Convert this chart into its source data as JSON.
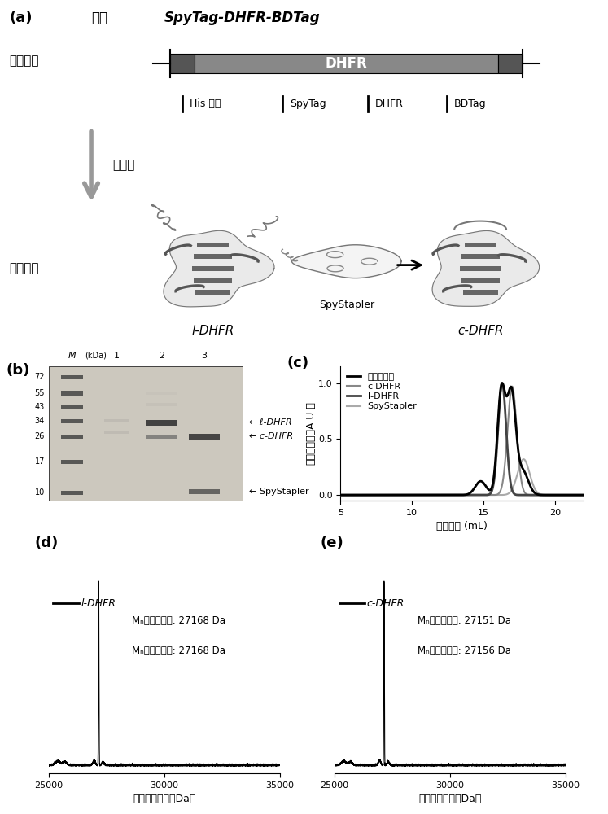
{
  "panel_a_label": "(a)",
  "panel_b_label": "(b)",
  "panel_c_label": "(c)",
  "panel_d_label": "(d)",
  "panel_e_label": "(e)",
  "title_gene": "基因",
  "title_italic": "SpyTag-DHFR-BDTag",
  "dhfr_box_label": "DHFR",
  "intracell_label": "胞内表达",
  "extracell_label": "胞外反应",
  "protein_label": "蛋白质",
  "legend_labels": [
    "His 标签",
    "SpyTag",
    "DHFR",
    "BDTag"
  ],
  "l_dhfr_label": "l-DHFR",
  "c_dhfr_label": "c-DHFR",
  "spystapler_label": "SpyStapler",
  "mw_markers": [
    72,
    55,
    43,
    34,
    26,
    17,
    10
  ],
  "gel_annotations": [
    "l-DHFR",
    "c-DHFR",
    "SpyStapler"
  ],
  "c_xlabel": "流出体积 (mL)",
  "c_ylabel": "归一化强度（A.U.）",
  "c_legend": [
    "反应混合液",
    "c-DHFR",
    "l-DHFR",
    "SpyStapler"
  ],
  "c_colors": [
    "#000000",
    "#888888",
    "#444444",
    "#aaaaaa"
  ],
  "c_lw": [
    2.0,
    1.5,
    2.0,
    1.5
  ],
  "c_xlim": [
    5,
    22
  ],
  "c_ylim": [
    -0.05,
    1.15
  ],
  "c_xticks": [
    5,
    10,
    15,
    20
  ],
  "c_yticks": [
    0.0,
    0.5,
    1.0
  ],
  "panel_d": {
    "label": "l-DHFR",
    "peak": 27168,
    "xlim": [
      25000,
      35000
    ],
    "xlabel": "相对分子质量（Da）",
    "calc_val": "27168",
    "exp_val": "27168",
    "calc_label": "Mₙ（计算値）: 27168 Da",
    "exp_label": "Mₙ（实验値）: 27168 Da"
  },
  "panel_e": {
    "label": "c-DHFR",
    "peak": 27151,
    "xlim": [
      25000,
      35000
    ],
    "xlabel": "相对分子质量（Da）",
    "calc_val": "27151",
    "exp_val": "27156",
    "calc_label": "Mₙ（计算値）: 27151 Da",
    "exp_label": "Mₙ（实验値）: 27156 Da"
  }
}
